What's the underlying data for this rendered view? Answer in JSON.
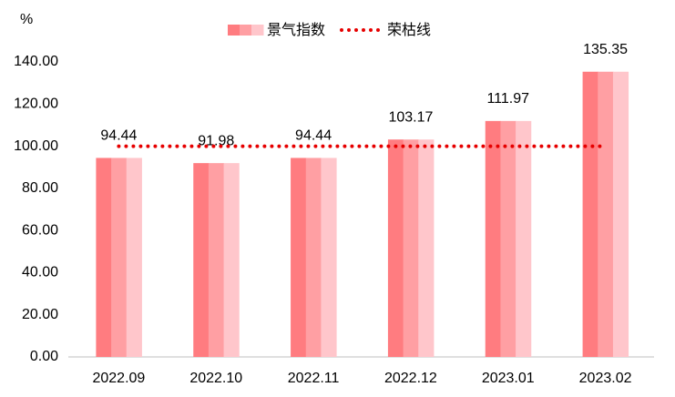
{
  "chart_data": {
    "type": "bar",
    "y_axis_label": "%",
    "categories": [
      "2022.09",
      "2022.10",
      "2022.11",
      "2022.12",
      "2023.01",
      "2023.02"
    ],
    "series": [
      {
        "name": "景气指数",
        "type": "bar",
        "colors": [
          "#ff7c80",
          "#ff9fa3",
          "#ffc6cb"
        ],
        "values": [
          94.44,
          91.98,
          94.44,
          103.17,
          111.97,
          135.35
        ]
      },
      {
        "name": "荣枯线",
        "type": "line",
        "color": "#e60000",
        "values": [
          100,
          100,
          100,
          100,
          100,
          100
        ]
      }
    ],
    "ylim": [
      0,
      140
    ],
    "yticks": [
      {
        "value": 0,
        "label": "0.00"
      },
      {
        "value": 20,
        "label": "20.00"
      },
      {
        "value": 40,
        "label": "40.00"
      },
      {
        "value": 60,
        "label": "60.00"
      },
      {
        "value": 80,
        "label": "80.00"
      },
      {
        "value": 100,
        "label": "100.00"
      },
      {
        "value": 120,
        "label": "120.00"
      },
      {
        "value": 140,
        "label": "140.00"
      }
    ],
    "legend": "top"
  }
}
